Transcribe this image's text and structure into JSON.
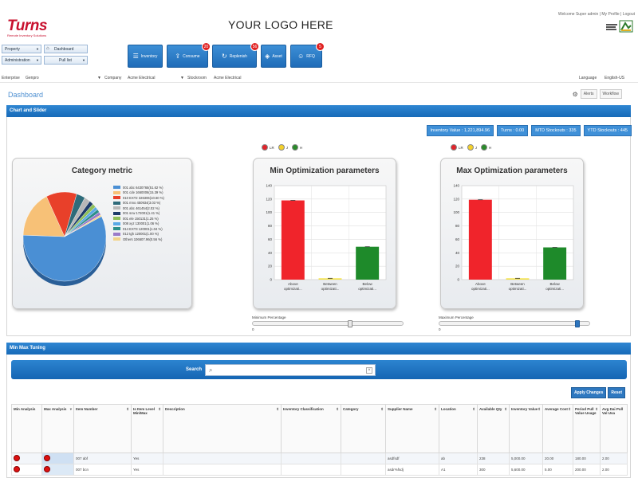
{
  "header": {
    "brand": "Turns",
    "brand_tagline": "Remote Inventory Solutions",
    "placeholder_logo": "YOUR LOGO HERE",
    "user_menu": "Welcome Super admin  |  My Profile  |  Logout"
  },
  "left_nav": {
    "property": "Property",
    "dashboard": "Dashboard",
    "administration": "Administration",
    "pull_list": "Pull list"
  },
  "tiles": [
    {
      "label": "Inventory",
      "icon": "list-icon",
      "badge": ""
    },
    {
      "label": "Consume",
      "icon": "tray-icon",
      "badge": "20"
    },
    {
      "label": "Replenish",
      "icon": "refresh-icon",
      "badge": "56"
    },
    {
      "label": "Asset",
      "icon": "box-icon",
      "badge": ""
    },
    {
      "label": "RFQ",
      "icon": "people-icon",
      "badge": "5"
    }
  ],
  "filters": {
    "enterprise_label": "Enterprise",
    "enterprise_value": "Genpro",
    "company_label": "Company",
    "company_value": "Acme Electrical",
    "stockroom_label": "Stockroom",
    "stockroom_value": "Acme Electrical",
    "language_label": "Language",
    "language_value": "English-US"
  },
  "dashboard": {
    "title": "Dashboard",
    "alerts": "Alerts",
    "workflow": "Workflow"
  },
  "chart_section": {
    "title": "Chart and Slider",
    "stats": [
      "Inventory Value : 1,221,894.96",
      "Turns : 0.00",
      "MTD Stockouts : 335",
      "YTD Stockouts : 445"
    ]
  },
  "rag_legend": {
    "red": "LR",
    "yellow": "J",
    "green": "H"
  },
  "min_slider": {
    "label": "Minimum Percentage",
    "value": "0",
    "position_fraction": 0.65
  },
  "max_slider": {
    "label": "Maximum Percentage",
    "value": "0",
    "position_fraction": 0.93
  },
  "chart_data": [
    {
      "type": "pie",
      "title": "Category metric",
      "categories": [
        "001 abc 6430765(51.62 %)",
        "001 cde 1660006(15.39 %)",
        "010 EXT2 326306(10.60 %)",
        "001 mno 450934(3.03 %)",
        "001 abc 461454(2.02 %)",
        "001 scw 172001(1.41 %)",
        "001 ele 150131(1.25 %)",
        "008 xyz 130001(1.06 %)",
        "014 EXT3 120001(1.04 %)",
        "012 tgh 120001(1.00 %)",
        "Others 106607.96(0.56 %)"
      ],
      "values": [
        51.62,
        15.39,
        10.6,
        3.03,
        2.02,
        1.41,
        1.25,
        1.06,
        1.04,
        1.0,
        0.56
      ],
      "colors": [
        "#4a8fd4",
        "#f7c177",
        "#e8402a",
        "#2e6b7a",
        "#b8b8b8",
        "#1f3d6b",
        "#8fbf5a",
        "#5aa9e6",
        "#2c8f8a",
        "#9a7bc9",
        "#f2d48a"
      ]
    },
    {
      "type": "bar",
      "title": "Min Optimization parameters",
      "categories": [
        "Above optimizati...",
        "Between optimizati...",
        "Below optimizati..."
      ],
      "values": [
        118,
        2,
        49
      ],
      "colors": [
        "#f0242b",
        "#f3e24a",
        "#1e8a2a"
      ],
      "ylim": [
        0,
        140
      ],
      "yticks": [
        "0",
        "20",
        "40",
        "60",
        "80",
        "100",
        "120",
        "140"
      ]
    },
    {
      "type": "bar",
      "title": "Max Optimization parameters",
      "categories": [
        "Above optimizati...",
        "Between optimizati...",
        "Below optimizati..."
      ],
      "values": [
        119,
        2,
        48
      ],
      "colors": [
        "#f0242b",
        "#f3e24a",
        "#1e8a2a"
      ],
      "ylim": [
        0,
        140
      ],
      "yticks": [
        "0",
        "20",
        "40",
        "60",
        "80",
        "100",
        "120",
        "140"
      ]
    }
  ],
  "minmax_section": {
    "title": "Min Max Tuning",
    "search_label": "Search",
    "search_placeholder": "",
    "apply_button": "Apply Changes",
    "reset_button": "Reset"
  },
  "grid": {
    "columns": [
      "Min Analysis",
      "Max Analysis",
      "Item Number",
      "Is Item Level Min/Max",
      "Description",
      "Inventory Classification",
      "Category",
      "Supplier Name",
      "Location",
      "Available Qty",
      "Inventory Value",
      "Average Cost",
      "Period Pull Value Usage",
      "Avg Dai Pull Val Usa"
    ],
    "rows": [
      [
        "",
        "",
        "007 abf",
        "Yes",
        "",
        "",
        "",
        "asdfsdf",
        "ab",
        "238",
        "5,000.00",
        "20.00",
        "180.00",
        "2.00"
      ],
      [
        "",
        "",
        "007 bcn",
        "Yes",
        "",
        "",
        "",
        "asdr%fsdj",
        "A1",
        "300",
        "5,600.00",
        "5.00",
        "200.00",
        "2.00"
      ]
    ]
  }
}
